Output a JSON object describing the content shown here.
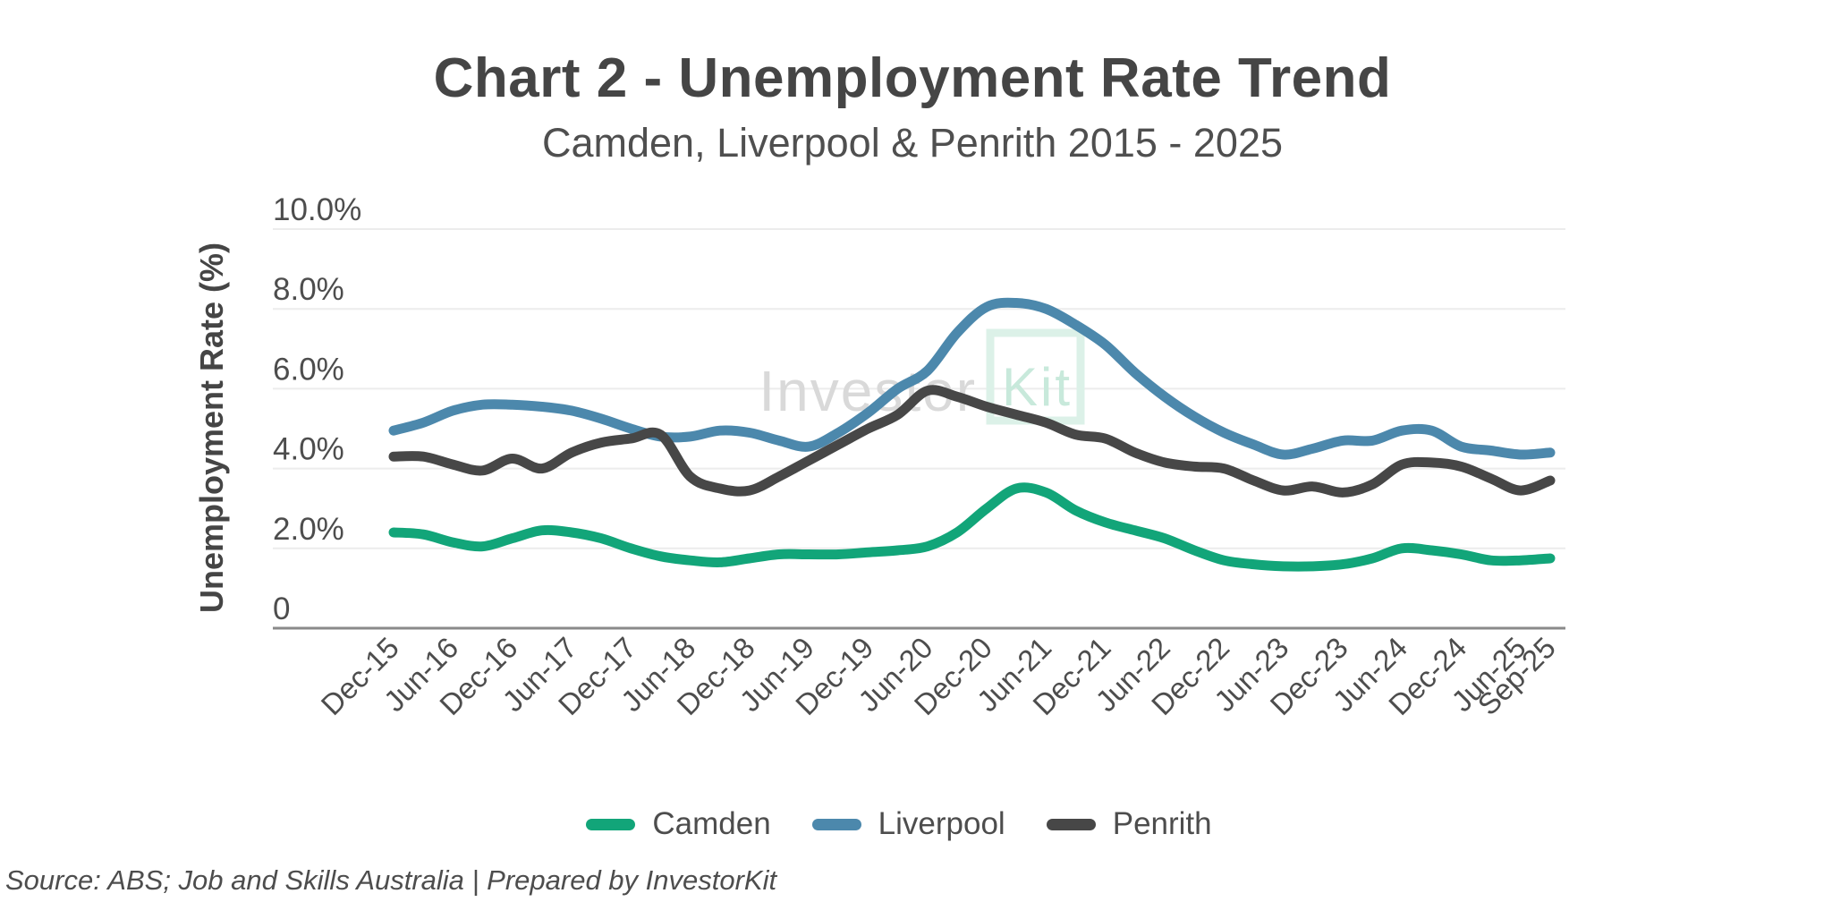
{
  "title": "Chart 2 - Unemployment Rate Trend",
  "subtitle": "Camden, Liverpool & Penrith 2015 - 2025",
  "footer": "Source: ABS; Job and Skills Australia | Prepared by InvestorKit",
  "watermark": {
    "text_gray": "Investor",
    "text_mint": "Kit"
  },
  "colors": {
    "camden": "#12a579",
    "liverpool": "#4c88ac",
    "penrith": "#474747",
    "gridline": "#ececec",
    "axis_line": "#8a8a8a",
    "tick_text": "#4d4d4d",
    "title_text": "#454545",
    "watermark_gray": "#d9d9d9",
    "watermark_mint": "#c8e9db",
    "watermark_box": "#dcf1e8"
  },
  "chart_data": {
    "type": "line",
    "title": "Chart 2 - Unemployment Rate Trend",
    "subtitle": "Camden, Liverpool & Penrith 2015 - 2025",
    "xlabel": "",
    "ylabel": "Unemployment Rate (%)",
    "ylim": [
      0,
      10
    ],
    "grid": true,
    "legend_position": "bottom",
    "yticks": [
      {
        "value": 0,
        "label": "0"
      },
      {
        "value": 2,
        "label": "2.0%"
      },
      {
        "value": 4,
        "label": "4.0%"
      },
      {
        "value": 6,
        "label": "6.0%"
      },
      {
        "value": 8,
        "label": "8.0%"
      },
      {
        "value": 10,
        "label": "10.0%"
      }
    ],
    "x": [
      "Dec-15",
      "Mar-16",
      "Jun-16",
      "Sep-16",
      "Dec-16",
      "Mar-17",
      "Jun-17",
      "Sep-17",
      "Dec-17",
      "Mar-18",
      "Jun-18",
      "Sep-18",
      "Dec-18",
      "Mar-19",
      "Jun-19",
      "Sep-19",
      "Dec-19",
      "Mar-20",
      "Jun-20",
      "Sep-20",
      "Dec-20",
      "Mar-21",
      "Jun-21",
      "Sep-21",
      "Dec-21",
      "Mar-22",
      "Jun-22",
      "Sep-22",
      "Dec-22",
      "Mar-23",
      "Jun-23",
      "Sep-23",
      "Dec-23",
      "Mar-24",
      "Jun-24",
      "Sep-24",
      "Dec-24",
      "Mar-25",
      "Jun-25",
      "Sep-25"
    ],
    "xtick_indices": [
      0,
      2,
      4,
      6,
      8,
      10,
      12,
      14,
      16,
      18,
      20,
      22,
      24,
      26,
      28,
      30,
      32,
      34,
      36,
      38,
      39
    ],
    "series": [
      {
        "name": "Camden",
        "color": "#12a579",
        "values": [
          2.4,
          2.35,
          2.15,
          2.05,
          2.25,
          2.45,
          2.4,
          2.25,
          2.0,
          1.8,
          1.7,
          1.65,
          1.75,
          1.85,
          1.85,
          1.85,
          1.9,
          1.95,
          2.05,
          2.4,
          3.0,
          3.5,
          3.4,
          2.95,
          2.65,
          2.45,
          2.25,
          1.95,
          1.7,
          1.6,
          1.55,
          1.55,
          1.6,
          1.75,
          2.0,
          1.95,
          1.85,
          1.7,
          1.7,
          1.75
        ]
      },
      {
        "name": "Liverpool",
        "color": "#4c88ac",
        "values": [
          4.95,
          5.15,
          5.45,
          5.6,
          5.6,
          5.55,
          5.45,
          5.25,
          5.0,
          4.8,
          4.8,
          4.95,
          4.9,
          4.7,
          4.55,
          4.9,
          5.4,
          6.0,
          6.45,
          7.4,
          8.05,
          8.15,
          8.0,
          7.6,
          7.1,
          6.4,
          5.8,
          5.3,
          4.9,
          4.6,
          4.35,
          4.5,
          4.7,
          4.7,
          4.95,
          4.95,
          4.55,
          4.45,
          4.35,
          4.4
        ]
      },
      {
        "name": "Penrith",
        "color": "#474747",
        "values": [
          4.3,
          4.3,
          4.1,
          3.95,
          4.25,
          4.0,
          4.4,
          4.65,
          4.75,
          4.85,
          3.8,
          3.5,
          3.45,
          3.8,
          4.2,
          4.6,
          5.0,
          5.35,
          5.95,
          5.8,
          5.55,
          5.35,
          5.15,
          4.85,
          4.75,
          4.4,
          4.15,
          4.05,
          4.0,
          3.7,
          3.45,
          3.55,
          3.4,
          3.6,
          4.1,
          4.15,
          4.05,
          3.75,
          3.45,
          3.7
        ]
      }
    ]
  }
}
